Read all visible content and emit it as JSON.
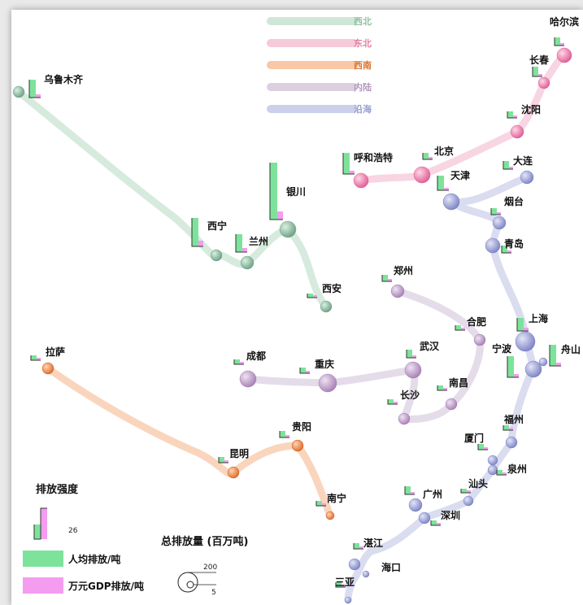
{
  "legend_regions": [
    {
      "label": "西北",
      "color": "#cfe6d8",
      "text_color": "#8fbf9f"
    },
    {
      "label": "东北",
      "color": "#f6cad8",
      "text_color": "#e07ea3"
    },
    {
      "label": "西南",
      "color": "#f7c7a6",
      "text_color": "#d9722e"
    },
    {
      "label": "内陆",
      "color": "#dccfe0",
      "text_color": "#b59abd"
    },
    {
      "label": "沿海",
      "color": "#cdd0ea",
      "text_color": "#9aa0cf"
    }
  ],
  "intensity_legend": {
    "title": "排放强度",
    "value": "26",
    "per_capita": "人均排放/吨",
    "per_gdp": "万元GDP排放/吨",
    "per_capita_color": "#7de39b",
    "per_gdp_color": "#f49cf0"
  },
  "total_legend": {
    "title": "总排放量 (百万吨)",
    "max": "200",
    "min": "5"
  },
  "cities": {
    "wulumuqi": "乌鲁木齐",
    "xining": "西宁",
    "lanzhou": "兰州",
    "yinchuan": "银川",
    "xian": "西安",
    "haerbin": "哈尔滨",
    "changchun": "长春",
    "shenyang": "沈阳",
    "huhehaote": "呼和浩特",
    "beijing": "北京",
    "tianjin": "天津",
    "dalian": "大连",
    "yantai": "烟台",
    "qingdao": "青岛",
    "zhengzhou": "郑州",
    "hefei": "合肥",
    "shanghai": "上海",
    "ningbo": "宁波",
    "zhoushan": "舟山",
    "wuhan": "武汉",
    "chengdu": "成都",
    "chongqing": "重庆",
    "changsha": "长沙",
    "nanchang": "南昌",
    "fuzhou": "福州",
    "xiamen": "厦门",
    "quanzhou": "泉州",
    "shantou": "汕头",
    "guangzhou": "广州",
    "shenzhen": "深圳",
    "zhanjiang": "湛江",
    "haikou": "海口",
    "sanya": "三亚",
    "lasa": "拉萨",
    "kunming": "昆明",
    "guiyang": "贵阳",
    "nanning": "南宁"
  }
}
